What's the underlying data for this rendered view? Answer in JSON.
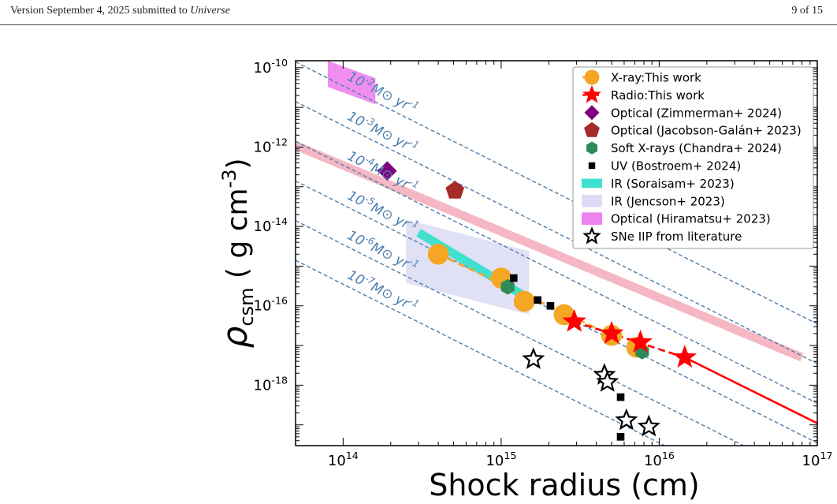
{
  "header": {
    "left_prefix": "Version September 4, 2025 submitted to ",
    "left_journal": "Universe",
    "right": "9 of 15"
  },
  "chart_data": {
    "type": "scatter",
    "xlabel": "Shock radius (cm)",
    "ylabel": "ρ_csm ( g cm^-3 )",
    "xscale": "log",
    "yscale": "log",
    "xlim": [
      50000000000000.0,
      1e+17
    ],
    "ylim": [
      3e-20,
      1.5e-10
    ],
    "grid": false,
    "legend_position": "top-right",
    "x_ticks": [
      {
        "value": 100000000000000.0,
        "label": "10^14"
      },
      {
        "value": 1000000000000000.0,
        "label": "10^15"
      },
      {
        "value": 1e+16,
        "label": "10^16"
      },
      {
        "value": 1e+17,
        "label": "10^17"
      }
    ],
    "y_ticks": [
      {
        "value": 1e-18,
        "label": "10^-18"
      },
      {
        "value": 1e-16,
        "label": "10^-16"
      },
      {
        "value": 1e-14,
        "label": "10^-14"
      },
      {
        "value": 1e-12,
        "label": "10^-12"
      },
      {
        "value": 1e-10,
        "label": "10^-10"
      }
    ],
    "mass_loss_lines": [
      {
        "label": "10^-2 M⊙ yr^-1",
        "rho_at_1e15": 3.5e-13
      },
      {
        "label": "10^-3 M⊙ yr^-1",
        "rho_at_1e15": 3.5e-14
      },
      {
        "label": "10^-4 M⊙ yr^-1",
        "rho_at_1e15": 3.5e-15
      },
      {
        "label": "10^-5 M⊙ yr^-1",
        "rho_at_1e15": 3.5e-16
      },
      {
        "label": "10^-6 M⊙ yr^-1",
        "rho_at_1e15": 3.5e-17
      },
      {
        "label": "10^-7 M⊙ yr^-1",
        "rho_at_1e15": 3.5e-18
      }
    ],
    "line_color": "#4a7fb0",
    "series": [
      {
        "name": "X-ray:This work",
        "marker": "circle",
        "color": "#f5a623",
        "points": [
          [
            400000000000000.0,
            2e-15
          ],
          [
            1000000000000000.0,
            5e-16
          ],
          [
            1400000000000000.0,
            1.3e-16
          ],
          [
            2500000000000000.0,
            6e-17
          ],
          [
            5000000000000000.0,
            1.8e-17
          ],
          [
            7200000000000000.0,
            9e-18
          ]
        ]
      },
      {
        "name": "Radio:This work",
        "marker": "star",
        "color": "#ff0000",
        "points": [
          [
            2900000000000000.0,
            4e-17
          ],
          [
            5000000000000000.0,
            2e-17
          ],
          [
            7600000000000000.0,
            1.2e-17
          ],
          [
            1.45e+16,
            5e-18
          ]
        ]
      },
      {
        "name": "Optical (Zimmerman+ 2024)",
        "marker": "diamond",
        "color": "#800080",
        "points": [
          [
            190000000000000.0,
            2.5e-13
          ]
        ]
      },
      {
        "name": "Optical (Jacobson-Galán+ 2023)",
        "marker": "pentagon",
        "color": "#a52a2a",
        "points": [
          [
            510000000000000.0,
            8e-14
          ]
        ]
      },
      {
        "name": "Soft X-rays (Chandra+ 2024)",
        "marker": "hexagon",
        "color": "#2e8b57",
        "points": [
          [
            1100000000000000.0,
            3e-16
          ],
          [
            7800000000000000.0,
            7e-18
          ]
        ]
      },
      {
        "name": "UV (Bostroem+ 2024)",
        "marker": "square",
        "color": "#000000",
        "points": [
          [
            1200000000000000.0,
            5e-16
          ],
          [
            1700000000000000.0,
            1.4e-16
          ],
          [
            2050000000000000.0,
            1e-16
          ],
          [
            5700000000000000.0,
            5e-19
          ],
          [
            5700000000000000.0,
            5e-20
          ]
        ]
      },
      {
        "name": "IR (Soraisam+ 2023)",
        "marker": "band",
        "color": "#40e0d0",
        "band": [
          [
            300000000000000.0,
            7e-15
          ],
          [
            1500000000000000.0,
            1.5e-16
          ]
        ]
      },
      {
        "name": "IR (Jencson+ 2023)",
        "marker": "rect",
        "color": "#dcdcf5",
        "box": [
          250000000000000.0,
          1500000000000000.0,
          6e-17,
          1.5e-14
        ]
      },
      {
        "name": "Optical (Hiramatsu+ 2023)",
        "marker": "rect",
        "color": "#ee82ee",
        "box": [
          80000000000000.0,
          160000000000000.0,
          1.2e-11,
          1.5e-10
        ]
      },
      {
        "name": "SNe IIP from literature",
        "marker": "open-star",
        "color": "#000000",
        "points": [
          [
            1600000000000000.0,
            4.5e-18
          ],
          [
            4500000000000000.0,
            1.8e-18
          ],
          [
            4700000000000000.0,
            1.2e-18
          ],
          [
            6200000000000000.0,
            1.3e-19
          ],
          [
            8600000000000000.0,
            9e-20
          ]
        ]
      }
    ],
    "fit_lines": [
      {
        "series": "X-ray:This work",
        "color": "#f5a623",
        "style": "dashed",
        "points": [
          [
            400000000000000.0,
            2e-15
          ],
          [
            5000000000000000.0,
            1.8e-17
          ]
        ]
      },
      {
        "series": "Radio:This work",
        "color": "#ff0000",
        "style": "dashed",
        "points": [
          [
            2900000000000000.0,
            4e-17
          ],
          [
            1.45e+16,
            5e-18
          ]
        ]
      },
      {
        "series": "Radio:This work",
        "color": "#ff0000",
        "style": "solid",
        "points": [
          [
            1.45e+16,
            5e-18
          ],
          [
            1e+17,
            1.1e-19
          ]
        ]
      }
    ],
    "pink_band": {
      "color": "#f4b0bd",
      "points": [
        [
          50000000000000.0,
          1.1e-12
        ],
        [
          8e+16,
          5e-18
        ]
      ]
    }
  }
}
